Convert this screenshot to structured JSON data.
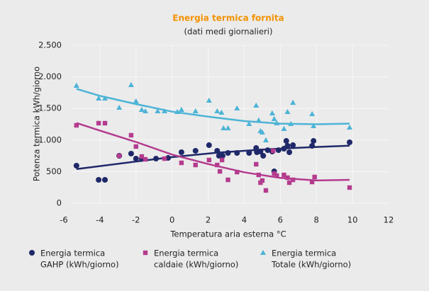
{
  "chart_data": {
    "type": "scatter",
    "title": "Energia termica fornita",
    "subtitle": "(dati medi giornalieri)",
    "x_label": "Temperatura aria esterna °C",
    "y_label": "Potenza termica kWh/giorno",
    "xlim": [
      -6,
      12
    ],
    "xticks": [
      -6,
      -4,
      -2,
      0,
      2,
      4,
      6,
      8,
      10,
      12
    ],
    "ylim": [
      0,
      2500
    ],
    "yticks": [
      0,
      500,
      {
        "value": 1000,
        "label": "1.000"
      },
      {
        "value": 1500,
        "label": "1.500"
      },
      {
        "value": 2000,
        "label": "2.000"
      },
      {
        "value": 2500,
        "label": "2.500"
      }
    ],
    "grid": true,
    "legend": "bottom",
    "title_color": "#f39200",
    "series": [
      {
        "name": [
          "Energia termica",
          "GAHP (kWh/giorno)"
        ],
        "color": "#1f2869",
        "marker": "circle",
        "x": [
          -5.3,
          -4.07,
          -3.72,
          -2.93,
          -2.27,
          -2.0,
          -1.68,
          -0.89,
          -0.22,
          0.52,
          1.3,
          2.05,
          2.5,
          2.6,
          2.8,
          3.1,
          3.6,
          4.27,
          4.66,
          4.7,
          4.9,
          5.05,
          5.3,
          5.55,
          5.66,
          5.9,
          6.2,
          6.33,
          6.4,
          6.5,
          6.7,
          7.76,
          7.84,
          9.84
        ],
        "values": [
          594,
          370,
          370,
          751,
          785,
          706,
          706,
          706,
          717,
          807,
          830,
          919,
          830,
          751,
          751,
          796,
          796,
          796,
          874,
          807,
          818,
          751,
          840,
          818,
          504,
          840,
          863,
          986,
          908,
          807,
          919,
          908,
          986,
          964
        ],
        "trend_x": [
          -5.3,
          -2,
          0,
          2.5,
          5,
          7.5,
          9.84
        ],
        "trend_values": [
          540,
          660,
          730,
          800,
          850,
          885,
          910
        ]
      },
      {
        "name": [
          "Energia termica",
          "caldaie (kWh/giorno)"
        ],
        "color": "#b43b8e",
        "marker": "square",
        "x": [
          -5.3,
          -4.07,
          -3.72,
          -2.93,
          -2.27,
          -2.0,
          -1.68,
          -1.48,
          -0.42,
          0.52,
          1.3,
          2.05,
          2.5,
          2.65,
          2.77,
          3.1,
          3.6,
          4.66,
          4.8,
          4.9,
          5.0,
          5.2,
          5.6,
          5.66,
          5.8,
          6.2,
          6.4,
          6.5,
          6.7,
          7.76,
          7.9,
          9.84
        ],
        "values": [
          1233,
          1267,
          1267,
          751,
          1076,
          897,
          740,
          695,
          706,
          639,
          605,
          684,
          605,
          504,
          684,
          370,
          493,
          617,
          448,
          325,
          359,
          202,
          829,
          471,
          437,
          448,
          404,
          325,
          370,
          336,
          415,
          247
        ],
        "trend_x": [
          -5.3,
          -4,
          -2,
          0,
          2,
          4,
          6,
          8,
          9.84
        ],
        "trend_values": [
          1270,
          1150,
          970,
          770,
          620,
          490,
          400,
          360,
          370
        ]
      },
      {
        "name": [
          "Energia termica",
          "Totale (kWh/giorno)"
        ],
        "color": "#4cb4d6",
        "marker": "triangle",
        "x": [
          -5.3,
          -4.07,
          -3.72,
          -2.93,
          -2.27,
          -2.0,
          -1.68,
          -1.48,
          -0.8,
          -0.42,
          0.29,
          0.52,
          1.3,
          2.05,
          2.5,
          2.74,
          2.85,
          3.1,
          3.6,
          4.27,
          4.66,
          4.8,
          4.9,
          5.0,
          5.2,
          5.55,
          5.66,
          5.8,
          6.2,
          6.4,
          6.58,
          6.7,
          7.76,
          7.84,
          9.84
        ],
        "values": [
          1861,
          1659,
          1659,
          1513,
          1872,
          1614,
          1480,
          1457,
          1457,
          1457,
          1446,
          1480,
          1457,
          1625,
          1457,
          1435,
          1188,
          1188,
          1502,
          1255,
          1547,
          1312,
          1143,
          1121,
          998,
          1424,
          1334,
          1267,
          1177,
          1446,
          1255,
          1592,
          1412,
          1222,
          1199
        ],
        "trend_x": [
          -5.3,
          -4,
          -2,
          0,
          2,
          4,
          6,
          8,
          9.84
        ],
        "trend_values": [
          1810,
          1700,
          1570,
          1450,
          1370,
          1300,
          1260,
          1250,
          1260
        ]
      }
    ]
  }
}
